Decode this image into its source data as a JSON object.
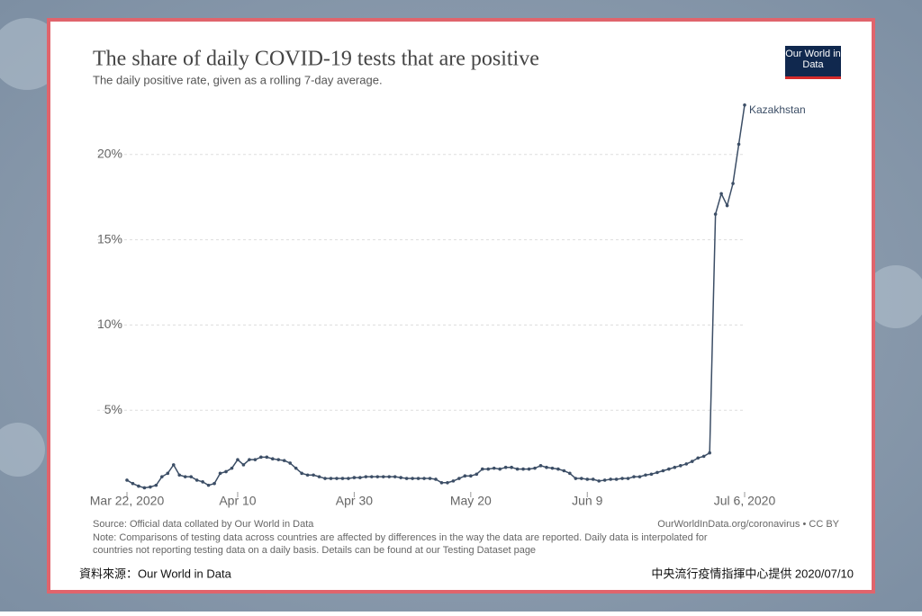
{
  "chart_data": {
    "type": "line",
    "title": "The share of daily COVID-19 tests that are positive",
    "subtitle": "The daily positive rate, given as a rolling 7-day average.",
    "logo": "Our World in Data",
    "source": "Source: Official data collated by Our World in Data",
    "license": "OurWorldInData.org/coronavirus • CC BY",
    "note": [
      "Note: Comparisons of testing data across countries are affected by differences in the way the data are reported. Daily data is interpolated for",
      "countries not reporting testing data on a daily basis. Details can be found at our Testing Dataset page"
    ],
    "footer_left": "資料來源：Our World in Data",
    "footer_right": "中央流行疫情指揮中心提供 2020/07/10",
    "x": [
      "2020-03-22",
      "2020-03-23",
      "2020-03-24",
      "2020-03-25",
      "2020-03-26",
      "2020-03-27",
      "2020-03-28",
      "2020-03-29",
      "2020-03-30",
      "2020-03-31",
      "2020-04-01",
      "2020-04-02",
      "2020-04-03",
      "2020-04-04",
      "2020-04-05",
      "2020-04-06",
      "2020-04-07",
      "2020-04-08",
      "2020-04-09",
      "2020-04-10",
      "2020-04-11",
      "2020-04-12",
      "2020-04-13",
      "2020-04-14",
      "2020-04-15",
      "2020-04-16",
      "2020-04-17",
      "2020-04-18",
      "2020-04-19",
      "2020-04-20",
      "2020-04-21",
      "2020-04-22",
      "2020-04-23",
      "2020-04-24",
      "2020-04-25",
      "2020-04-26",
      "2020-04-27",
      "2020-04-28",
      "2020-04-29",
      "2020-04-30",
      "2020-05-01",
      "2020-05-02",
      "2020-05-03",
      "2020-05-04",
      "2020-05-05",
      "2020-05-06",
      "2020-05-07",
      "2020-05-08",
      "2020-05-09",
      "2020-05-10",
      "2020-05-11",
      "2020-05-12",
      "2020-05-13",
      "2020-05-14",
      "2020-05-15",
      "2020-05-16",
      "2020-05-17",
      "2020-05-18",
      "2020-05-19",
      "2020-05-20",
      "2020-05-21",
      "2020-05-22",
      "2020-05-23",
      "2020-05-24",
      "2020-05-25",
      "2020-05-26",
      "2020-05-27",
      "2020-05-28",
      "2020-05-29",
      "2020-05-30",
      "2020-05-31",
      "2020-06-01",
      "2020-06-02",
      "2020-06-03",
      "2020-06-04",
      "2020-06-05",
      "2020-06-06",
      "2020-06-07",
      "2020-06-08",
      "2020-06-09",
      "2020-06-10",
      "2020-06-11",
      "2020-06-12",
      "2020-06-13",
      "2020-06-14",
      "2020-06-15",
      "2020-06-16",
      "2020-06-17",
      "2020-06-18",
      "2020-06-19",
      "2020-06-20",
      "2020-06-21",
      "2020-06-22",
      "2020-06-23",
      "2020-06-24",
      "2020-06-25",
      "2020-06-26",
      "2020-06-27",
      "2020-06-28",
      "2020-06-29",
      "2020-06-30",
      "2020-07-01",
      "2020-07-02",
      "2020-07-03",
      "2020-07-04",
      "2020-07-05",
      "2020-07-06"
    ],
    "series": [
      {
        "name": "Kazakhstan",
        "color": "#3c4e66",
        "values": [
          0.9,
          0.7,
          0.55,
          0.45,
          0.5,
          0.6,
          1.1,
          1.3,
          1.8,
          1.2,
          1.1,
          1.1,
          0.9,
          0.8,
          0.6,
          0.7,
          1.3,
          1.4,
          1.6,
          2.1,
          1.8,
          2.1,
          2.1,
          2.25,
          2.25,
          2.15,
          2.1,
          2.05,
          1.9,
          1.6,
          1.3,
          1.2,
          1.2,
          1.1,
          1.0,
          1.0,
          1.0,
          1.0,
          1.0,
          1.05,
          1.05,
          1.1,
          1.1,
          1.1,
          1.1,
          1.1,
          1.1,
          1.05,
          1.0,
          1.0,
          1.0,
          1.0,
          1.0,
          0.95,
          0.75,
          0.75,
          0.85,
          1.0,
          1.15,
          1.15,
          1.25,
          1.55,
          1.55,
          1.6,
          1.55,
          1.65,
          1.65,
          1.55,
          1.55,
          1.55,
          1.6,
          1.75,
          1.65,
          1.6,
          1.55,
          1.45,
          1.3,
          1.0,
          1.0,
          0.95,
          0.95,
          0.85,
          0.9,
          0.95,
          0.95,
          1.0,
          1.0,
          1.1,
          1.1,
          1.2,
          1.25,
          1.35,
          1.45,
          1.55,
          1.65,
          1.75,
          1.85,
          2.0,
          2.2,
          2.3,
          2.5,
          16.5,
          17.7,
          17.0,
          18.3,
          20.6,
          22.9
        ]
      }
    ],
    "xlim": [
      "2020-03-22",
      "2020-07-06"
    ],
    "xticks": [
      {
        "value": "2020-03-22",
        "label": "Mar 22, 2020"
      },
      {
        "value": "2020-04-10",
        "label": "Apr 10"
      },
      {
        "value": "2020-04-30",
        "label": "Apr 30"
      },
      {
        "value": "2020-05-20",
        "label": "May 20"
      },
      {
        "value": "2020-06-09",
        "label": "Jun 9"
      },
      {
        "value": "2020-07-06",
        "label": "Jul 6, 2020"
      }
    ],
    "ylim": [
      0,
      23.1
    ],
    "yticks": [
      {
        "value": 5,
        "label": "5%"
      },
      {
        "value": 10,
        "label": "10%"
      },
      {
        "value": 15,
        "label": "15%"
      },
      {
        "value": 20,
        "label": "20%"
      }
    ],
    "grid": true
  }
}
